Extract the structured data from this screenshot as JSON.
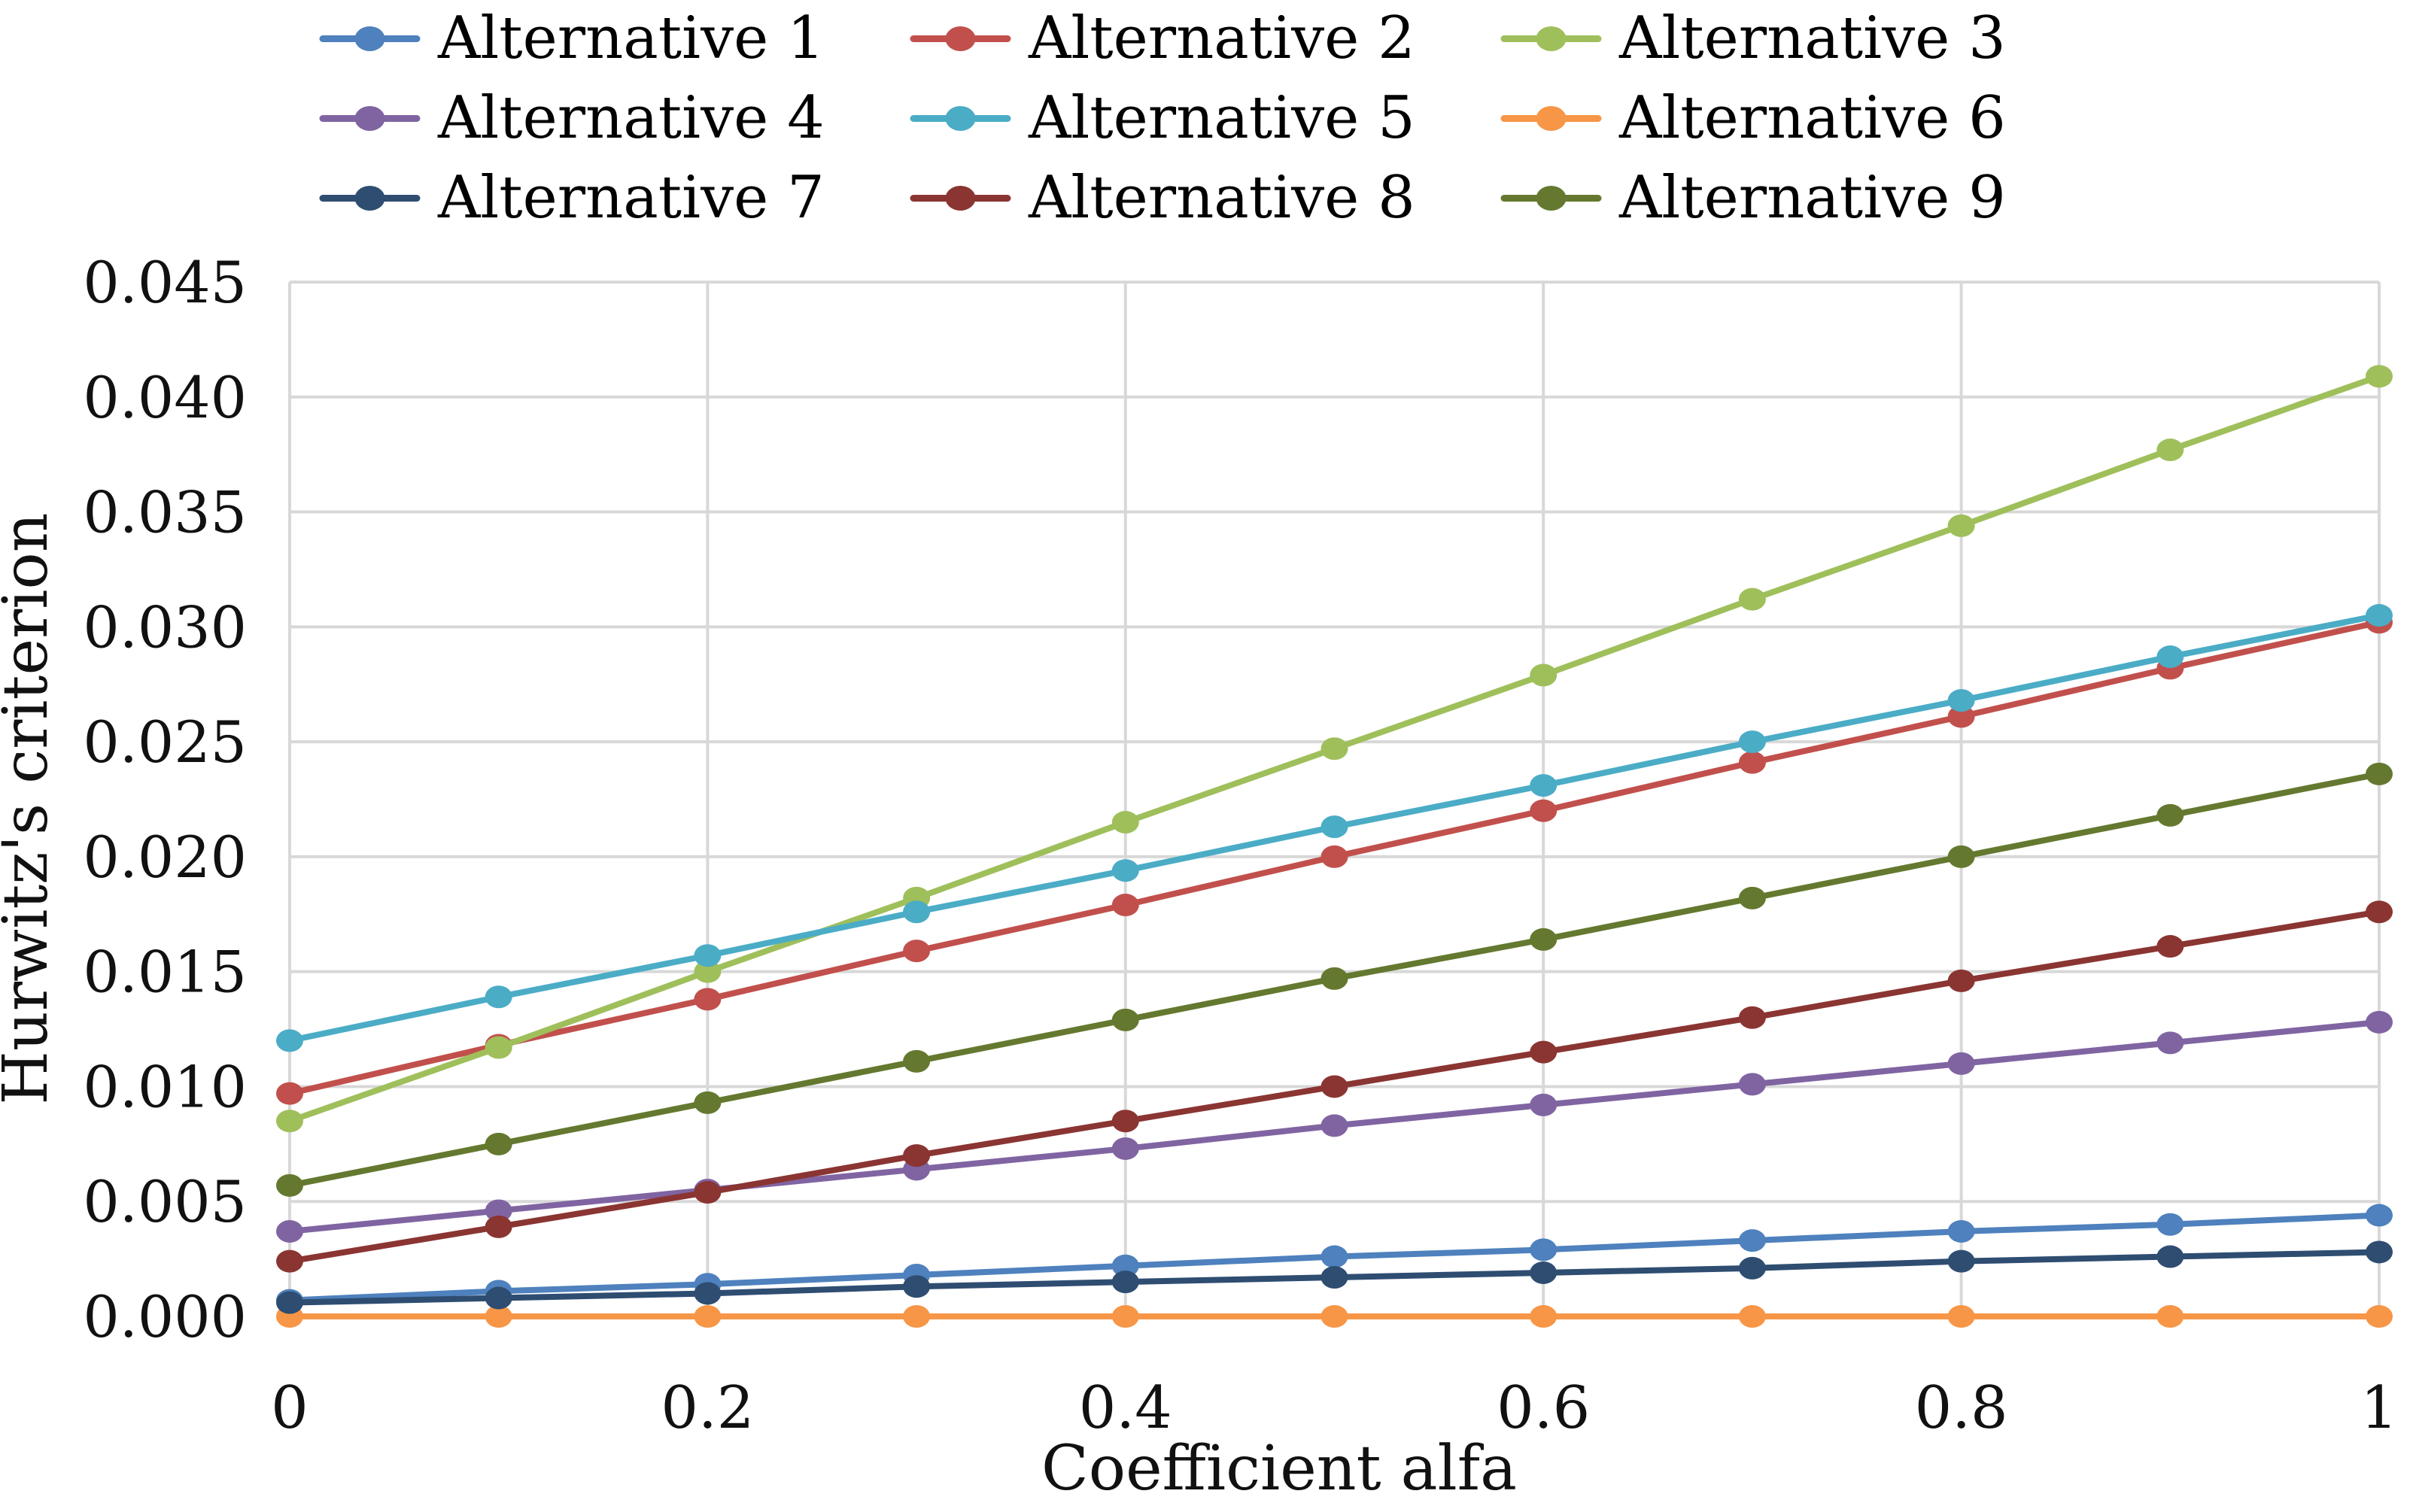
{
  "figure": {
    "background": "#ffffff",
    "text_color": "#111111"
  },
  "chart_data": {
    "type": "line",
    "title": "",
    "xlabel": "Coefficient alfa",
    "ylabel": "Hurwitz's criterion",
    "x": [
      0,
      0.1,
      0.2,
      0.3,
      0.4,
      0.5,
      0.6,
      0.7,
      0.8,
      0.9,
      1.0
    ],
    "xlim": [
      0,
      1
    ],
    "ylim": [
      0,
      0.045
    ],
    "ytick_step": 0.005,
    "ytick_labels": [
      "0.000",
      "0.005",
      "0.010",
      "0.015",
      "0.020",
      "0.025",
      "0.030",
      "0.035",
      "0.040",
      "0.045"
    ],
    "xticks": [
      0,
      0.2,
      0.4,
      0.6,
      0.8,
      1.0
    ],
    "xtick_labels": [
      "0",
      "0.2",
      "0.4",
      "0.6",
      "0.8",
      "1"
    ],
    "grid": "on",
    "grid_color": "#d8d8d8",
    "legend_position": "top",
    "marker": "circle",
    "series": [
      {
        "name": "Alternative 1",
        "color": "#4e81bd",
        "values": [
          0.0007,
          0.0011,
          0.0014,
          0.0018,
          0.0022,
          0.0026,
          0.0029,
          0.0033,
          0.0037,
          0.004,
          0.0044
        ]
      },
      {
        "name": "Alternative 2",
        "color": "#c1504c",
        "values": [
          0.0097,
          0.0118,
          0.0138,
          0.0159,
          0.0179,
          0.02,
          0.022,
          0.0241,
          0.0261,
          0.0282,
          0.0302
        ]
      },
      {
        "name": "Alternative 3",
        "color": "#9fbf5b",
        "values": [
          0.0085,
          0.0117,
          0.015,
          0.0182,
          0.0215,
          0.0247,
          0.0279,
          0.0312,
          0.0344,
          0.0377,
          0.0409
        ]
      },
      {
        "name": "Alternative 4",
        "color": "#8064a2",
        "values": [
          0.0037,
          0.0046,
          0.0055,
          0.0064,
          0.0073,
          0.0083,
          0.0092,
          0.0101,
          0.011,
          0.0119,
          0.0128
        ]
      },
      {
        "name": "Alternative 5",
        "color": "#4bacc6",
        "values": [
          0.012,
          0.0139,
          0.0157,
          0.0176,
          0.0194,
          0.0213,
          0.0231,
          0.025,
          0.0268,
          0.0287,
          0.0305
        ]
      },
      {
        "name": "Alternative 6",
        "color": "#f79646",
        "values": [
          0.0,
          0.0,
          0.0,
          0.0,
          0.0,
          0.0,
          0.0,
          0.0,
          0.0,
          0.0,
          0.0
        ]
      },
      {
        "name": "Alternative 7",
        "color": "#2e4d71",
        "values": [
          0.0006,
          0.0008,
          0.001,
          0.0013,
          0.0015,
          0.0017,
          0.0019,
          0.0021,
          0.0024,
          0.0026,
          0.0028
        ]
      },
      {
        "name": "Alternative 8",
        "color": "#8a3532",
        "values": [
          0.0024,
          0.0039,
          0.0054,
          0.007,
          0.0085,
          0.01,
          0.0115,
          0.013,
          0.0146,
          0.0161,
          0.0176
        ]
      },
      {
        "name": "Alternative 9",
        "color": "#64792f",
        "values": [
          0.0057,
          0.0075,
          0.0093,
          0.0111,
          0.0129,
          0.0147,
          0.0164,
          0.0182,
          0.02,
          0.0218,
          0.0236
        ]
      }
    ]
  }
}
